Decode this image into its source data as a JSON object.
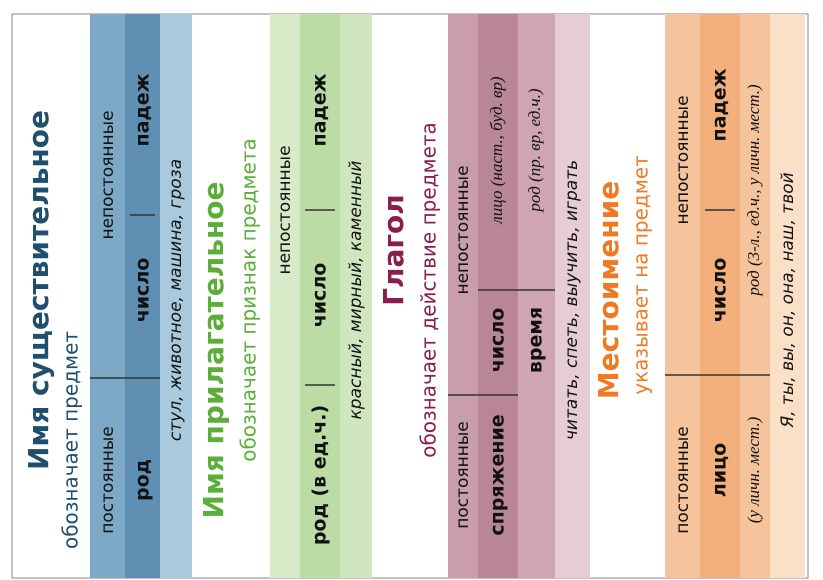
{
  "noun": {
    "title": "Имя существительное",
    "subtitle": "обозначает предмет",
    "constant": "постоянные",
    "variable": "непостоянные",
    "features": [
      "род",
      "число",
      "падеж"
    ],
    "example": "стул, животное, машина, гроза"
  },
  "adjective": {
    "title": "Имя прилагательное",
    "subtitle": "обозначает признак предмета",
    "variable": "непостоянные",
    "features": [
      "род (в ед.ч.)",
      "число",
      "падеж"
    ],
    "example": "красный, мирный, каменный"
  },
  "verb": {
    "title": "Глагол",
    "subtitle": "обозначает действие предмета",
    "constant": "постоянные",
    "variable": "непостоянные",
    "features": [
      "спряжение",
      "число",
      "лицо (наст., буд. вр)",
      "время",
      "род (пр. вр, ед.ч.)"
    ],
    "example": "читать, спеть, выучить, играть"
  },
  "pronoun": {
    "title": "Местоимение",
    "subtitle": "указывает на предмет",
    "constant": "постоянные",
    "variable": "непостоянные",
    "features": [
      "лицо",
      "(у личн. мест.)",
      "число",
      "падеж",
      "род (3-л., ед.ч., у личн. мест.)"
    ],
    "example": "Я, ты, вы, он, она, наш, твой"
  }
}
